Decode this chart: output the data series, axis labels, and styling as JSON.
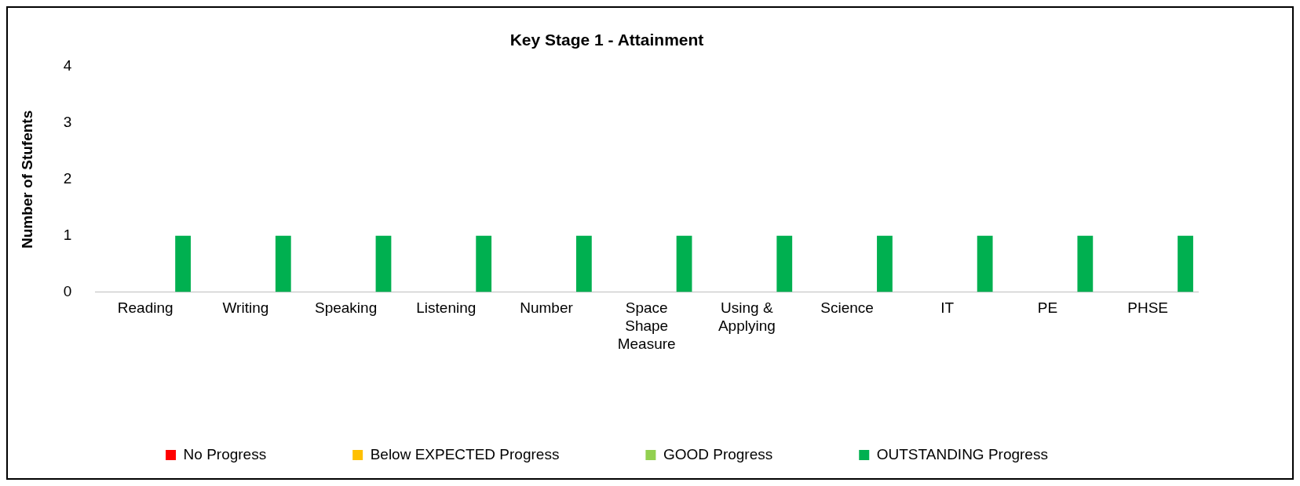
{
  "chart_data": {
    "type": "bar",
    "title": "Key Stage 1 - Attainment",
    "ylabel": "Number of Stufents",
    "categories": [
      "Reading",
      "Writing",
      "Speaking",
      "Listening",
      "Number",
      "Space Shape Measure",
      "Using & Applying",
      "Science",
      "IT",
      "PE",
      "PHSE"
    ],
    "series": [
      {
        "name": "No Progress",
        "color": "#ff0000",
        "values": [
          0,
          0,
          0,
          0,
          0,
          0,
          0,
          0,
          0,
          0,
          0
        ]
      },
      {
        "name": "Below EXPECTED Progress",
        "color": "#ffc000",
        "values": [
          0,
          0,
          0,
          0,
          0,
          0,
          0,
          0,
          0,
          0,
          0
        ]
      },
      {
        "name": "GOOD Progress",
        "color": "#92d050",
        "values": [
          0,
          0,
          0,
          0,
          0,
          0,
          0,
          0,
          0,
          0,
          0
        ]
      },
      {
        "name": "OUTSTANDING Progress",
        "color": "#00b050",
        "values": [
          1,
          1,
          1,
          1,
          1,
          1,
          1,
          1,
          1,
          1,
          1
        ]
      }
    ],
    "ylim": [
      0,
      4
    ],
    "yticks": [
      0,
      1,
      2,
      3,
      4
    ],
    "grid": false,
    "legend": "bottom"
  }
}
